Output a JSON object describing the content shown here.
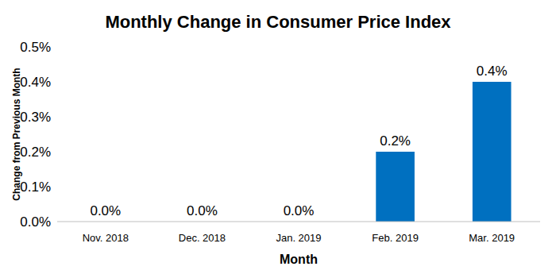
{
  "chart_data": {
    "type": "bar",
    "title": "Monthly Change in Consumer Price Index",
    "x_label": "Month",
    "y_label": "Change from Previous Month",
    "categories": [
      "Nov. 2018",
      "Dec. 2018",
      "Jan. 2019",
      "Feb. 2019",
      "Mar. 2019"
    ],
    "values": [
      0,
      0,
      0,
      0.2,
      0.4
    ],
    "value_labels": [
      "0.0%",
      "0.0%",
      "0.0%",
      "0.2%",
      "0.4%"
    ],
    "color": "#0070c0",
    "ylim": [
      0,
      0.5
    ],
    "yticks": [
      {
        "value": 0,
        "label": "0.0%"
      },
      {
        "value": 0.1,
        "label": "0.1%"
      },
      {
        "value": 0.2,
        "label": "0.2%"
      },
      {
        "value": 0.3,
        "label": "0.3%"
      },
      {
        "value": 0.4,
        "label": "0.4%"
      },
      {
        "value": 0.5,
        "label": "0.5%"
      }
    ],
    "grid": false,
    "data_labels": true
  }
}
